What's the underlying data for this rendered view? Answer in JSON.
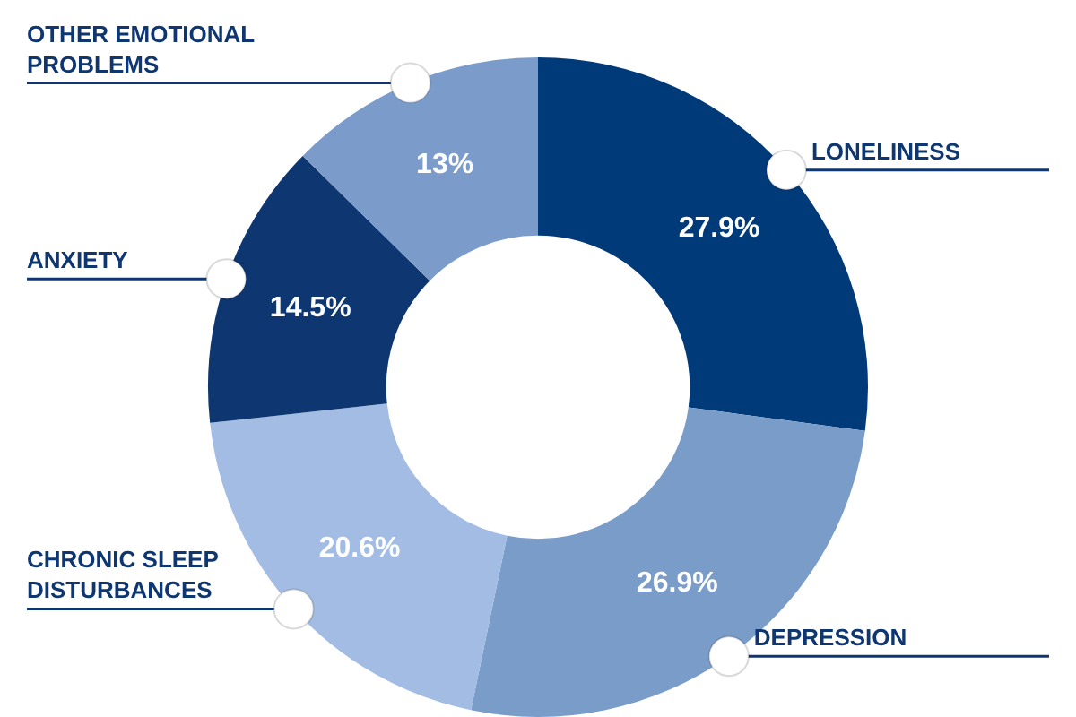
{
  "chart_data": {
    "type": "donut",
    "categories": [
      "LONELINESS",
      "DEPRESSION",
      "CHRONIC SLEEP DISTURBANCES",
      "ANXIETY",
      "OTHER EMOTIONAL PROBLEMS"
    ],
    "values": [
      27.9,
      26.9,
      20.6,
      14.5,
      13
    ],
    "colors": [
      "#003a78",
      "#7a9cc8",
      "#a3bce3",
      "#0e3671",
      "#7b9ccb"
    ],
    "value_labels": [
      "27.9%",
      "26.9%",
      "20.6%",
      "14.5%",
      "13%"
    ],
    "legend": false
  }
}
